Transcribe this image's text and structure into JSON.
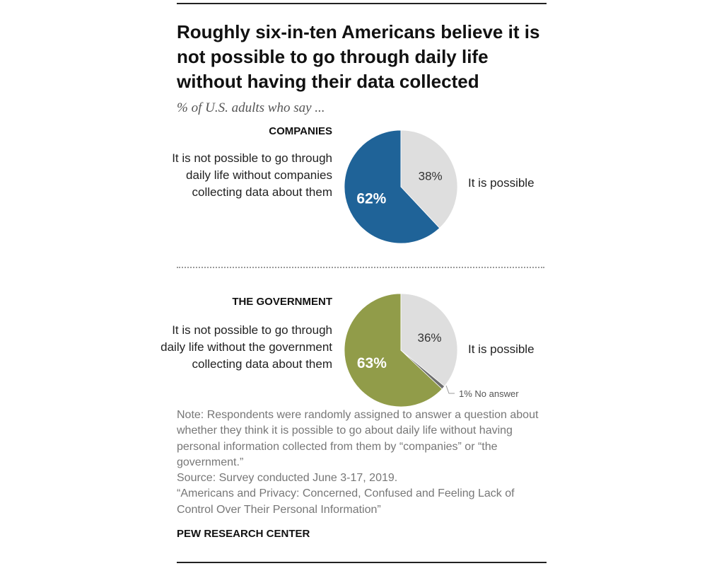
{
  "title": "Roughly six-in-ten Americans believe it is not possible to go through daily life without having their data collected",
  "subtitle": "% of U.S. adults who say ...",
  "colors": {
    "companies": "#1f6398",
    "government": "#919c49",
    "possible": "#dedede",
    "no_answer": "#6e6e6e",
    "divider": "#9a9a9a"
  },
  "chart_data": [
    {
      "type": "pie",
      "title": "COMPANIES",
      "slices": [
        {
          "label": "It is not possible to go through daily life without companies collecting data about them",
          "value": 62,
          "display": "62%",
          "color": "#1f6398"
        },
        {
          "label": "It is possible",
          "value": 38,
          "display": "38%",
          "color": "#dedede"
        }
      ]
    },
    {
      "type": "pie",
      "title": "THE GOVERNMENT",
      "slices": [
        {
          "label": "It is not possible to go through daily life without the government collecting data about them",
          "value": 63,
          "display": "63%",
          "color": "#919c49"
        },
        {
          "label": "It is possible",
          "value": 36,
          "display": "36%",
          "color": "#dedede"
        },
        {
          "label": "No answer",
          "value": 1,
          "display": "1%",
          "color": "#6e6e6e"
        }
      ]
    }
  ],
  "no_answer_label": "1% No answer",
  "notes": {
    "note": "Note: Respondents were randomly assigned to answer a question about whether they think it is possible to go about daily life without having personal information collected from them by “companies” or “the government.”",
    "source": "Source: Survey conducted June 3-17, 2019.",
    "report": "“Americans and Privacy: Concerned, Confused and Feeling Lack of Control Over Their Personal Information”"
  },
  "footer": "PEW RESEARCH CENTER"
}
